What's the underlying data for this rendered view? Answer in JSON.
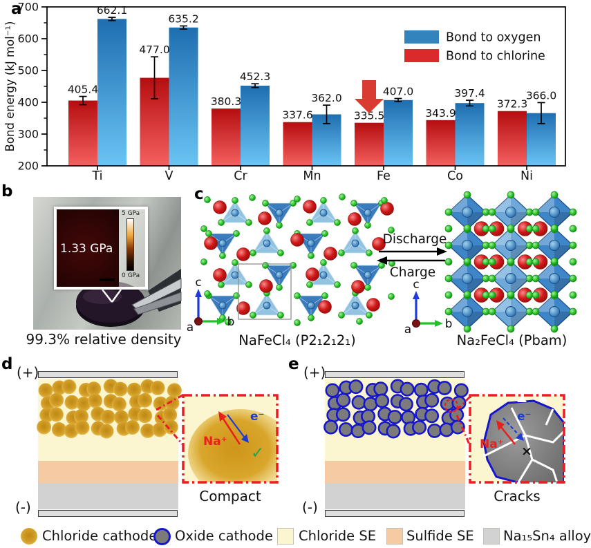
{
  "panel_a": {
    "label": "a",
    "chart_data": {
      "type": "bar",
      "categories": [
        "Ti",
        "V",
        "Cr",
        "Mn",
        "Fe",
        "Co",
        "Ni"
      ],
      "series": [
        {
          "name": "Bond to chlorine",
          "color": "#DA2A2C",
          "gradient_top": "#B50D10",
          "gradient_bottom": "#F4605F",
          "values": [
            405.4,
            477.0,
            380.3,
            337.6,
            335.5,
            343.9,
            372.3
          ],
          "labels": [
            "405.4",
            "477.0",
            "380.3",
            "337.6",
            "335.5",
            "343.9",
            "372.3"
          ],
          "errors": [
            13,
            66,
            0,
            0,
            0,
            0,
            0
          ]
        },
        {
          "name": "Bond to oxygen",
          "color": "#3383BC",
          "gradient_top": "#1E6EB0",
          "gradient_bottom": "#6AC4F4",
          "values": [
            662.1,
            635.2,
            452.3,
            362.0,
            407.0,
            397.4,
            366.0
          ],
          "labels": [
            "662.1",
            "635.2",
            "452.3",
            "362.0",
            "407.0",
            "397.4",
            "366.0"
          ],
          "errors": [
            5,
            5,
            6,
            29,
            5,
            9,
            33
          ]
        }
      ],
      "legend": [
        {
          "label": "Bond to oxygen",
          "color": "#3383BC"
        },
        {
          "label": "Bond to chlorine",
          "color": "#DA2A2C"
        }
      ],
      "ylabel": "Bond energy (kJ mol⁻¹)",
      "ylim": [
        200,
        700
      ],
      "yticks": [
        200,
        300,
        400,
        500,
        600,
        700
      ],
      "grid": false,
      "legend_position": "top-right",
      "annotation": {
        "type": "down-arrow",
        "category": "Fe",
        "series": "Bond to chlorine",
        "color": "#D93B30"
      }
    }
  },
  "panel_b": {
    "label": "b",
    "pressure": "1.33 GPa",
    "scale_max": "5 GPa",
    "scale_min": "0 GPa",
    "caption": "99.3% relative density"
  },
  "panel_c": {
    "label": "c",
    "forward": "Discharge",
    "backward": "Charge",
    "left_caption": "NaFeCl₄ (P2₁2₁2₁)",
    "right_caption": "Na₂FeCl₄ (Pbam)",
    "axis_a": "a",
    "axis_b": "b",
    "axis_c": "c"
  },
  "panel_d": {
    "label": "d",
    "positive": "(+)",
    "negative": "(-)",
    "ion": "Na⁺",
    "electron": "e⁻",
    "mark": "✓",
    "caption": "Compact"
  },
  "panel_e": {
    "label": "e",
    "positive": "(+)",
    "negative": "(-)",
    "ion": "Na⁺",
    "electron": "e⁻",
    "mark": "×",
    "caption": "Cracks"
  },
  "legend": {
    "items": [
      {
        "label": "Chloride cathode",
        "swatch": "gold-sphere",
        "color": "#D79B1D"
      },
      {
        "label": "Oxide cathode",
        "swatch": "oxide-sphere",
        "color": "#7B7B7B",
        "border": "#1616CC"
      },
      {
        "label": "Chloride SE",
        "swatch": "square",
        "color": "#FBF6CF"
      },
      {
        "label": "Sulfide SE",
        "swatch": "square",
        "color": "#F6CAA2"
      },
      {
        "label": "Na₁₅Sn₄ alloy",
        "swatch": "square",
        "color": "#D2D2D2"
      }
    ]
  },
  "colors": {
    "chloride_se": "#FBF6CF",
    "sulfide_se": "#F6CAA2",
    "alloy": "#D2D2D2",
    "electrode": "#DFDFDF",
    "gold_center": "#BE8812",
    "gold_edge": "#E9C964",
    "oxide_fill": "#7B7B7B",
    "oxide_border": "#1616CC",
    "inset_border": "#EC1C24",
    "ion_color": "#E8211D",
    "electron_color": "#1F3BD4",
    "check_color": "#21A64A"
  }
}
